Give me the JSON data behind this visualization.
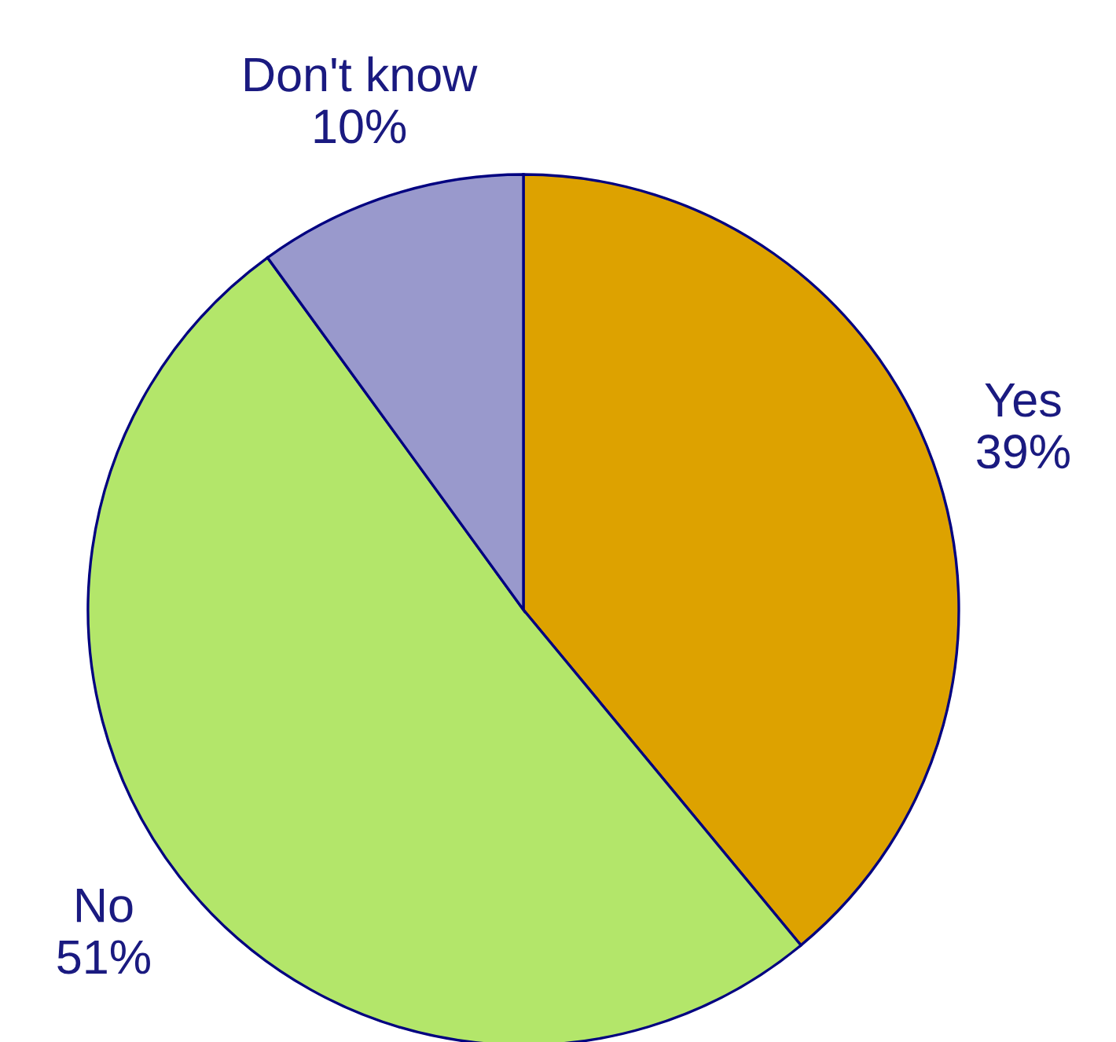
{
  "chart_data": {
    "type": "pie",
    "categories": [
      "Yes",
      "No",
      "Don't know"
    ],
    "values": [
      39,
      51,
      10
    ],
    "value_labels": [
      "39%",
      "51%",
      "10%"
    ],
    "colors": [
      "#dda200",
      "#b3e66a",
      "#9999cc"
    ]
  }
}
